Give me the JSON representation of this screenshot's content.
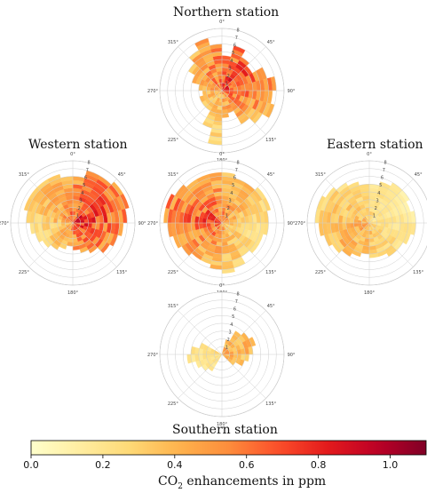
{
  "titles": {
    "north": "Northern station",
    "west": "Western station",
    "east": "Eastern station",
    "south": "Southern station"
  },
  "colorbar": {
    "label_main": "CO",
    "label_sub": "2",
    "label_rest": " enhancements in ppm",
    "ticks": [
      "0.0",
      "0.2",
      "0.4",
      "0.6",
      "0.8",
      "1.0"
    ],
    "range": [
      0,
      1.1
    ],
    "colormap": "YlOrRd"
  },
  "chart_data": [
    {
      "type": "polar-heatmap",
      "title": "Northern station",
      "theta_ticks": [
        "0°",
        "45°",
        "90°",
        "135°",
        "180°",
        "225°",
        "270°",
        "315°"
      ],
      "radial_ticks": [
        "1",
        "2",
        "3",
        "4",
        "5",
        "6",
        "7",
        "8"
      ],
      "rlim": [
        0,
        8
      ],
      "sectors_deg": 15,
      "extent": [
        4.5,
        6,
        5,
        4.5,
        6,
        7,
        6.5,
        7,
        6,
        5,
        3,
        3.5,
        7,
        5,
        3,
        3,
        3,
        2.5,
        3,
        4,
        5,
        6,
        7,
        6
      ],
      "max_value": 1.0
    },
    {
      "type": "polar-heatmap",
      "title": "Western station",
      "theta_ticks": [
        "0°",
        "45°",
        "90°",
        "135°",
        "180°",
        "225°",
        "270°",
        "315°"
      ],
      "radial_ticks": [
        "1",
        "2",
        "3",
        "4",
        "5",
        "6",
        "7",
        "8"
      ],
      "rlim": [
        0,
        8
      ],
      "sectors_deg": 15,
      "extent": [
        6,
        7,
        7,
        7.5,
        7.5,
        7,
        6.5,
        6,
        5.5,
        4.5,
        4,
        3.5,
        3,
        3.5,
        4,
        4.5,
        5,
        5.5,
        6,
        6.5,
        6.5,
        6.5,
        6.5,
        6
      ],
      "max_value": 1.05
    },
    {
      "type": "polar-heatmap",
      "title": "",
      "theta_ticks": [
        "0°",
        "45°",
        "90°",
        "135°",
        "180°",
        "225°",
        "270°",
        "315°"
      ],
      "radial_ticks": [
        "1",
        "2",
        "3",
        "4",
        "5",
        "6",
        "7",
        "8"
      ],
      "rlim": [
        0,
        8
      ],
      "sectors_deg": 15,
      "extent": [
        6.5,
        6,
        6,
        6.5,
        6.5,
        6,
        6,
        5.5,
        5.5,
        5,
        6,
        6.5,
        6,
        5.5,
        5.5,
        6,
        6.5,
        7,
        7.5,
        7.5,
        7,
        6.5,
        6.5,
        6.5
      ],
      "max_value": 0.95
    },
    {
      "type": "polar-heatmap",
      "title": "Eastern station",
      "theta_ticks": [
        "0°",
        "45°",
        "90°",
        "135°",
        "180°",
        "225°",
        "270°",
        "315°"
      ],
      "radial_ticks": [
        "1",
        "2",
        "3",
        "4",
        "5",
        "6",
        "7",
        "8"
      ],
      "rlim": [
        0,
        8
      ],
      "sectors_deg": 15,
      "extent": [
        5,
        5.5,
        6,
        6,
        5.5,
        6,
        6,
        5.5,
        5,
        5,
        4.5,
        4.5,
        4,
        4.5,
        5,
        5.5,
        6,
        6.5,
        7,
        7,
        6.5,
        6,
        5.5,
        5
      ],
      "max_value": 0.6
    },
    {
      "type": "polar-heatmap",
      "title": "Southern station",
      "theta_ticks": [
        "0°",
        "45°",
        "90°",
        "135°",
        "180°",
        "225°",
        "270°",
        "315°"
      ],
      "radial_ticks": [
        "1",
        "2",
        "3",
        "4",
        "5",
        "6",
        "7",
        "8"
      ],
      "rlim": [
        0,
        8
      ],
      "sectors_deg": 15,
      "extent": [
        0,
        2,
        3.5,
        4,
        4.5,
        4,
        3.5,
        3,
        2,
        0,
        0,
        0,
        0,
        0,
        2.5,
        3,
        3.5,
        4.5,
        4,
        3,
        0,
        0,
        0,
        0
      ],
      "max_value": 0.6
    }
  ]
}
